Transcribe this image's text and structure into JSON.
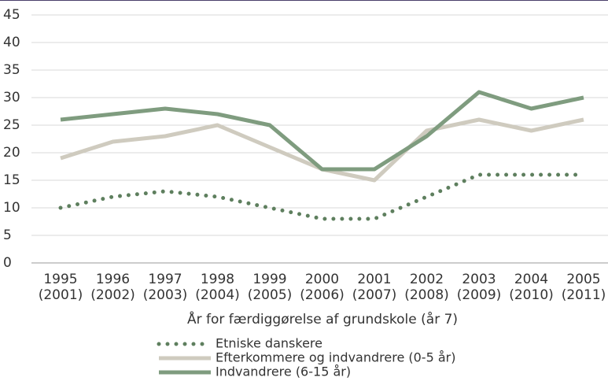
{
  "chart_data": {
    "type": "line",
    "x_label": "År for færdiggørelse af grundskole (år 7)",
    "categories": [
      "1995 (2001)",
      "1996 (2002)",
      "1997 (2003)",
      "1998 (2004)",
      "1999 (2005)",
      "2000 (2006)",
      "2001 (2007)",
      "2002 (2008)",
      "2003 (2009)",
      "2004 (2010)",
      "2005 (2011)"
    ],
    "series": [
      {
        "name": "Etniske danskere",
        "color": "#5e7f5e",
        "style": "dotted",
        "values": [
          10,
          12,
          13,
          12,
          10,
          8,
          8,
          12,
          16,
          16,
          16
        ]
      },
      {
        "name": "Efterkommere og indvandrere (0-5 år)",
        "color": "#cfcbbf",
        "style": "solid",
        "values": [
          19,
          22,
          23,
          25,
          21,
          17,
          15,
          24,
          26,
          24,
          26
        ]
      },
      {
        "name": "Indvandrere (6-15 år)",
        "color": "#7f9c7f",
        "style": "solid",
        "values": [
          26,
          27,
          28,
          27,
          25,
          17,
          17,
          23,
          31,
          28,
          30
        ]
      }
    ],
    "ylim": [
      0,
      45
    ],
    "yticks": [
      0,
      5,
      10,
      15,
      20,
      25,
      30,
      35,
      40,
      45
    ],
    "grid": true
  }
}
